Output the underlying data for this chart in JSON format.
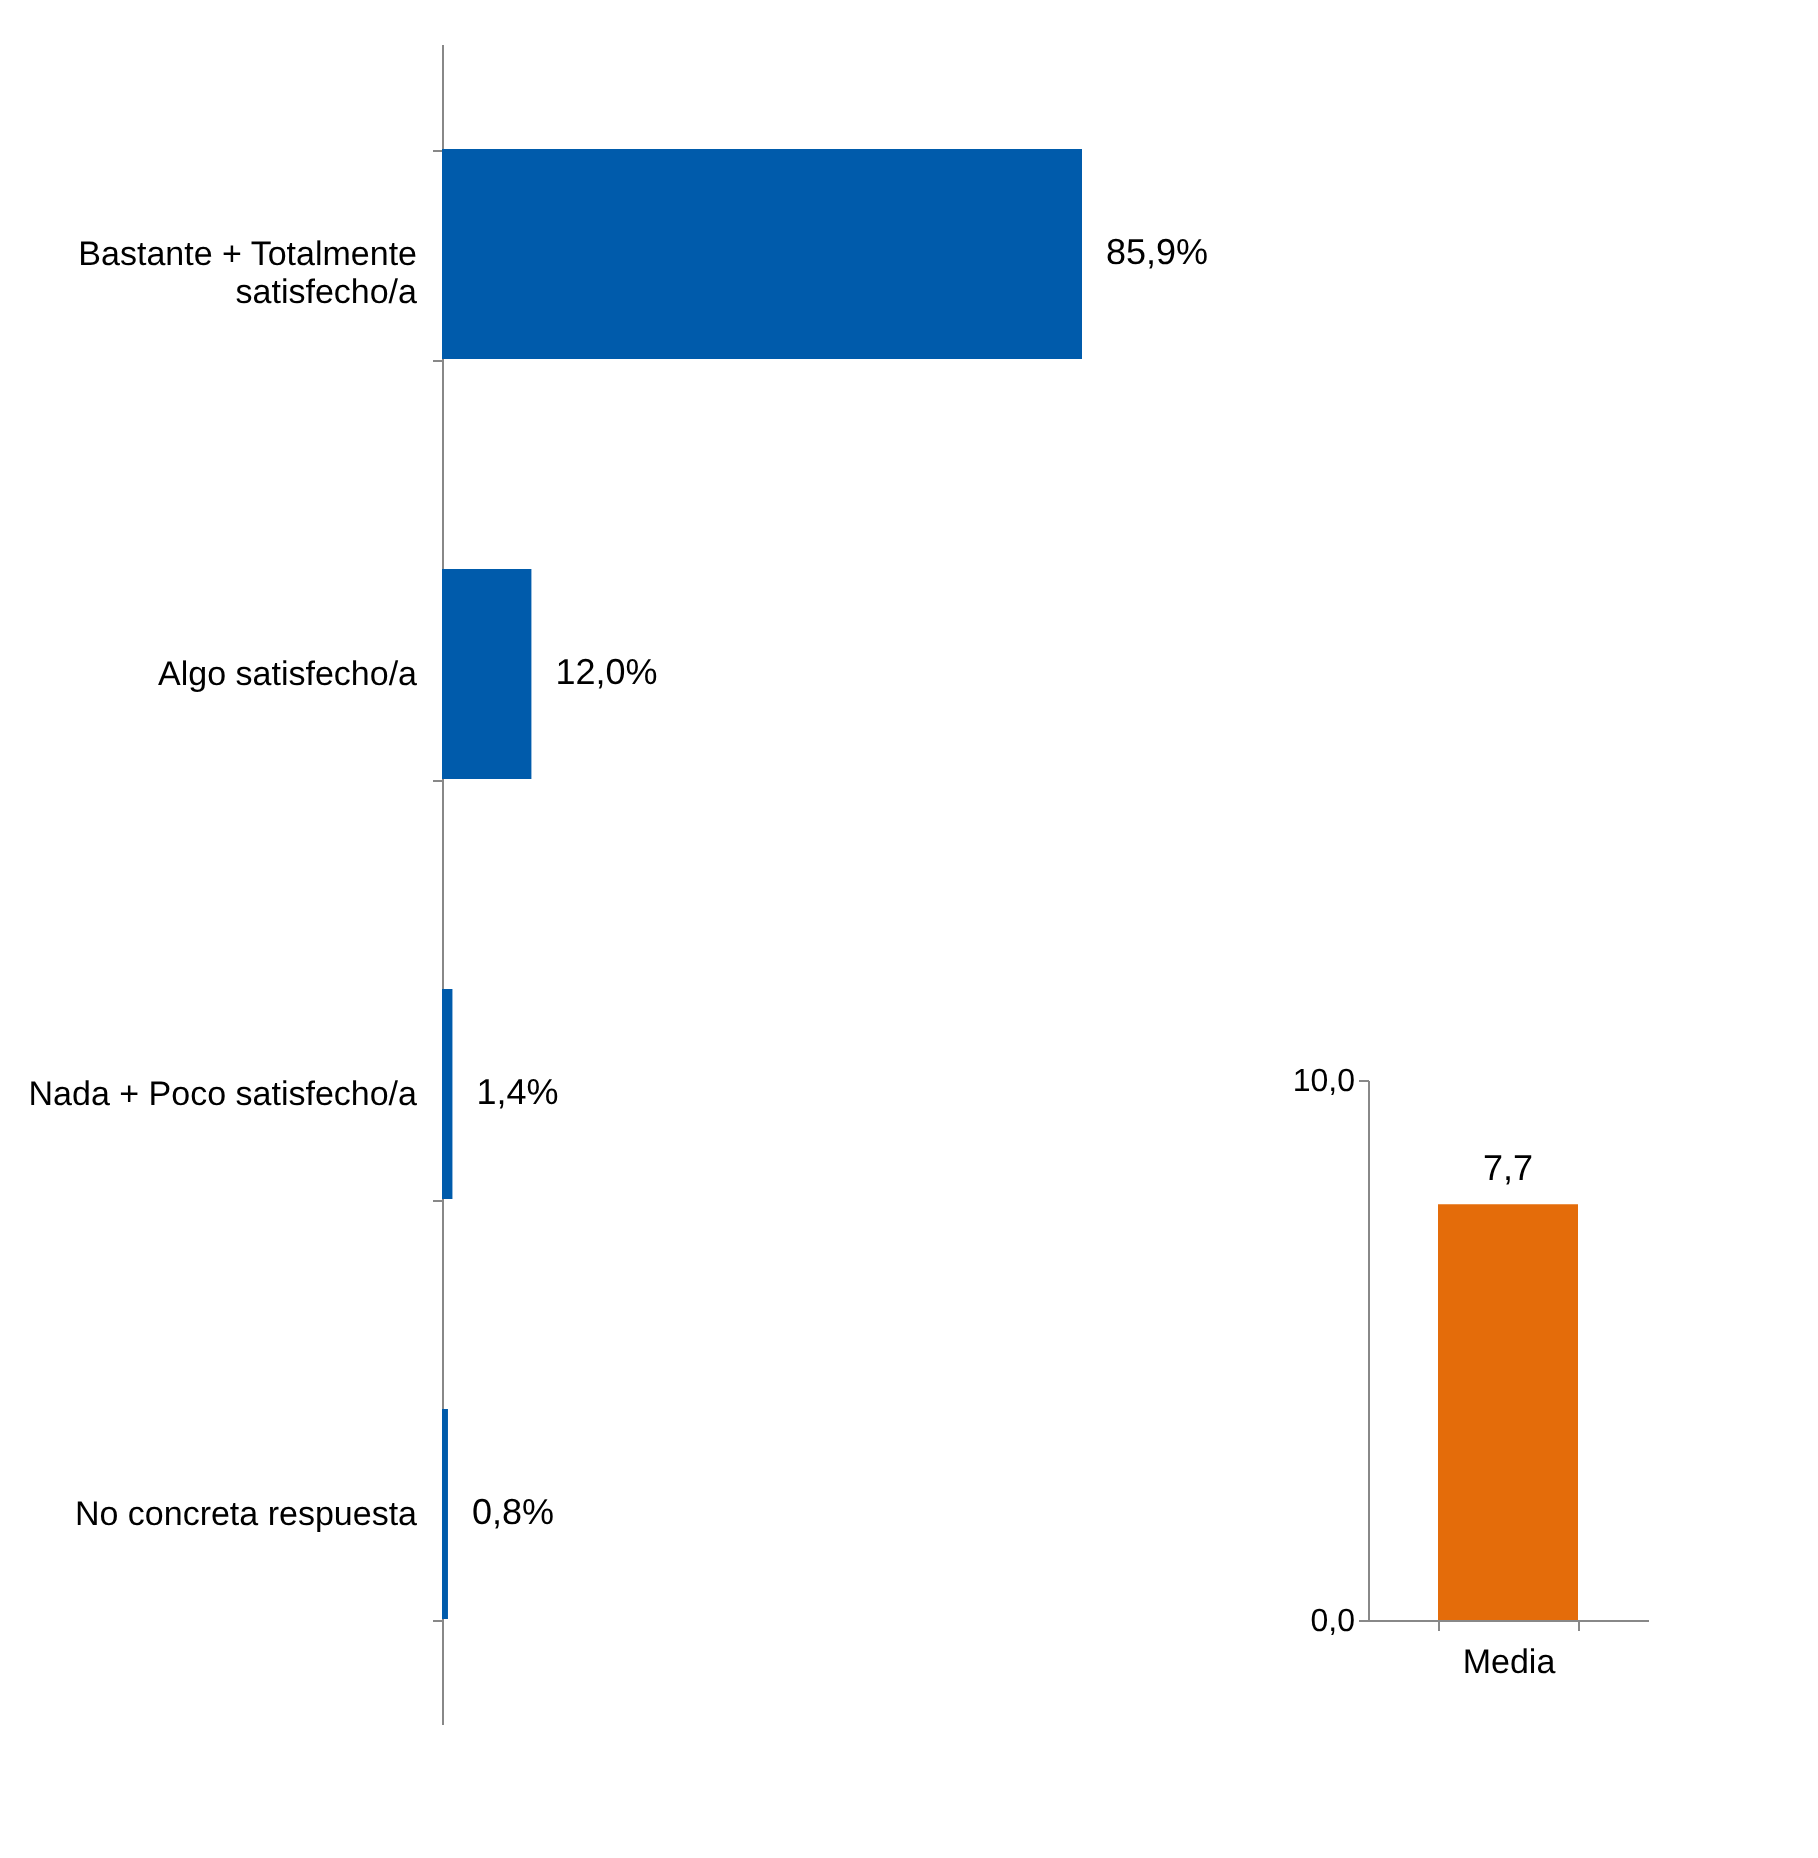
{
  "chart_data": [
    {
      "type": "bar",
      "orientation": "horizontal",
      "categories": [
        "Bastante + Totalmente satisfecho/a",
        "Algo satisfecho/a",
        "Nada + Poco satisfecho/a",
        "No concreta respuesta"
      ],
      "values": [
        85.9,
        12.0,
        1.4,
        0.8
      ],
      "value_labels": [
        "85,9%",
        "12,0%",
        "1,4%",
        "0,8%"
      ],
      "color": "#005bab",
      "grid": false
    },
    {
      "type": "bar",
      "categories": [
        "Media"
      ],
      "values": [
        7.7
      ],
      "value_labels": [
        "7,7"
      ],
      "color": "#e46c0a",
      "ylim": [
        0,
        10
      ],
      "yticks": [
        {
          "value": 0,
          "label": "0,0"
        },
        {
          "value": 10,
          "label": "10,0"
        }
      ],
      "grid": false
    }
  ]
}
